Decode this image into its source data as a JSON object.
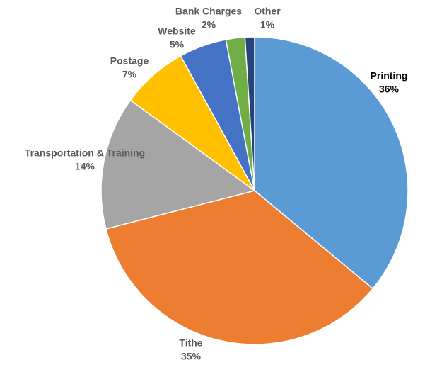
{
  "chart_data": {
    "type": "pie",
    "categories": [
      "Printing",
      "Tithe",
      "Transportation & Training",
      "Postage",
      "Website",
      "Bank Charges",
      "Other"
    ],
    "values": [
      36,
      35,
      14,
      7,
      5,
      2,
      1
    ],
    "value_labels": [
      "36%",
      "35%",
      "14%",
      "7%",
      "5%",
      "2%",
      "1%"
    ],
    "colors": [
      "#5b9bd5",
      "#ed7d31",
      "#a5a5a5",
      "#ffc000",
      "#4472c4",
      "#70ad47",
      "#264478"
    ]
  }
}
